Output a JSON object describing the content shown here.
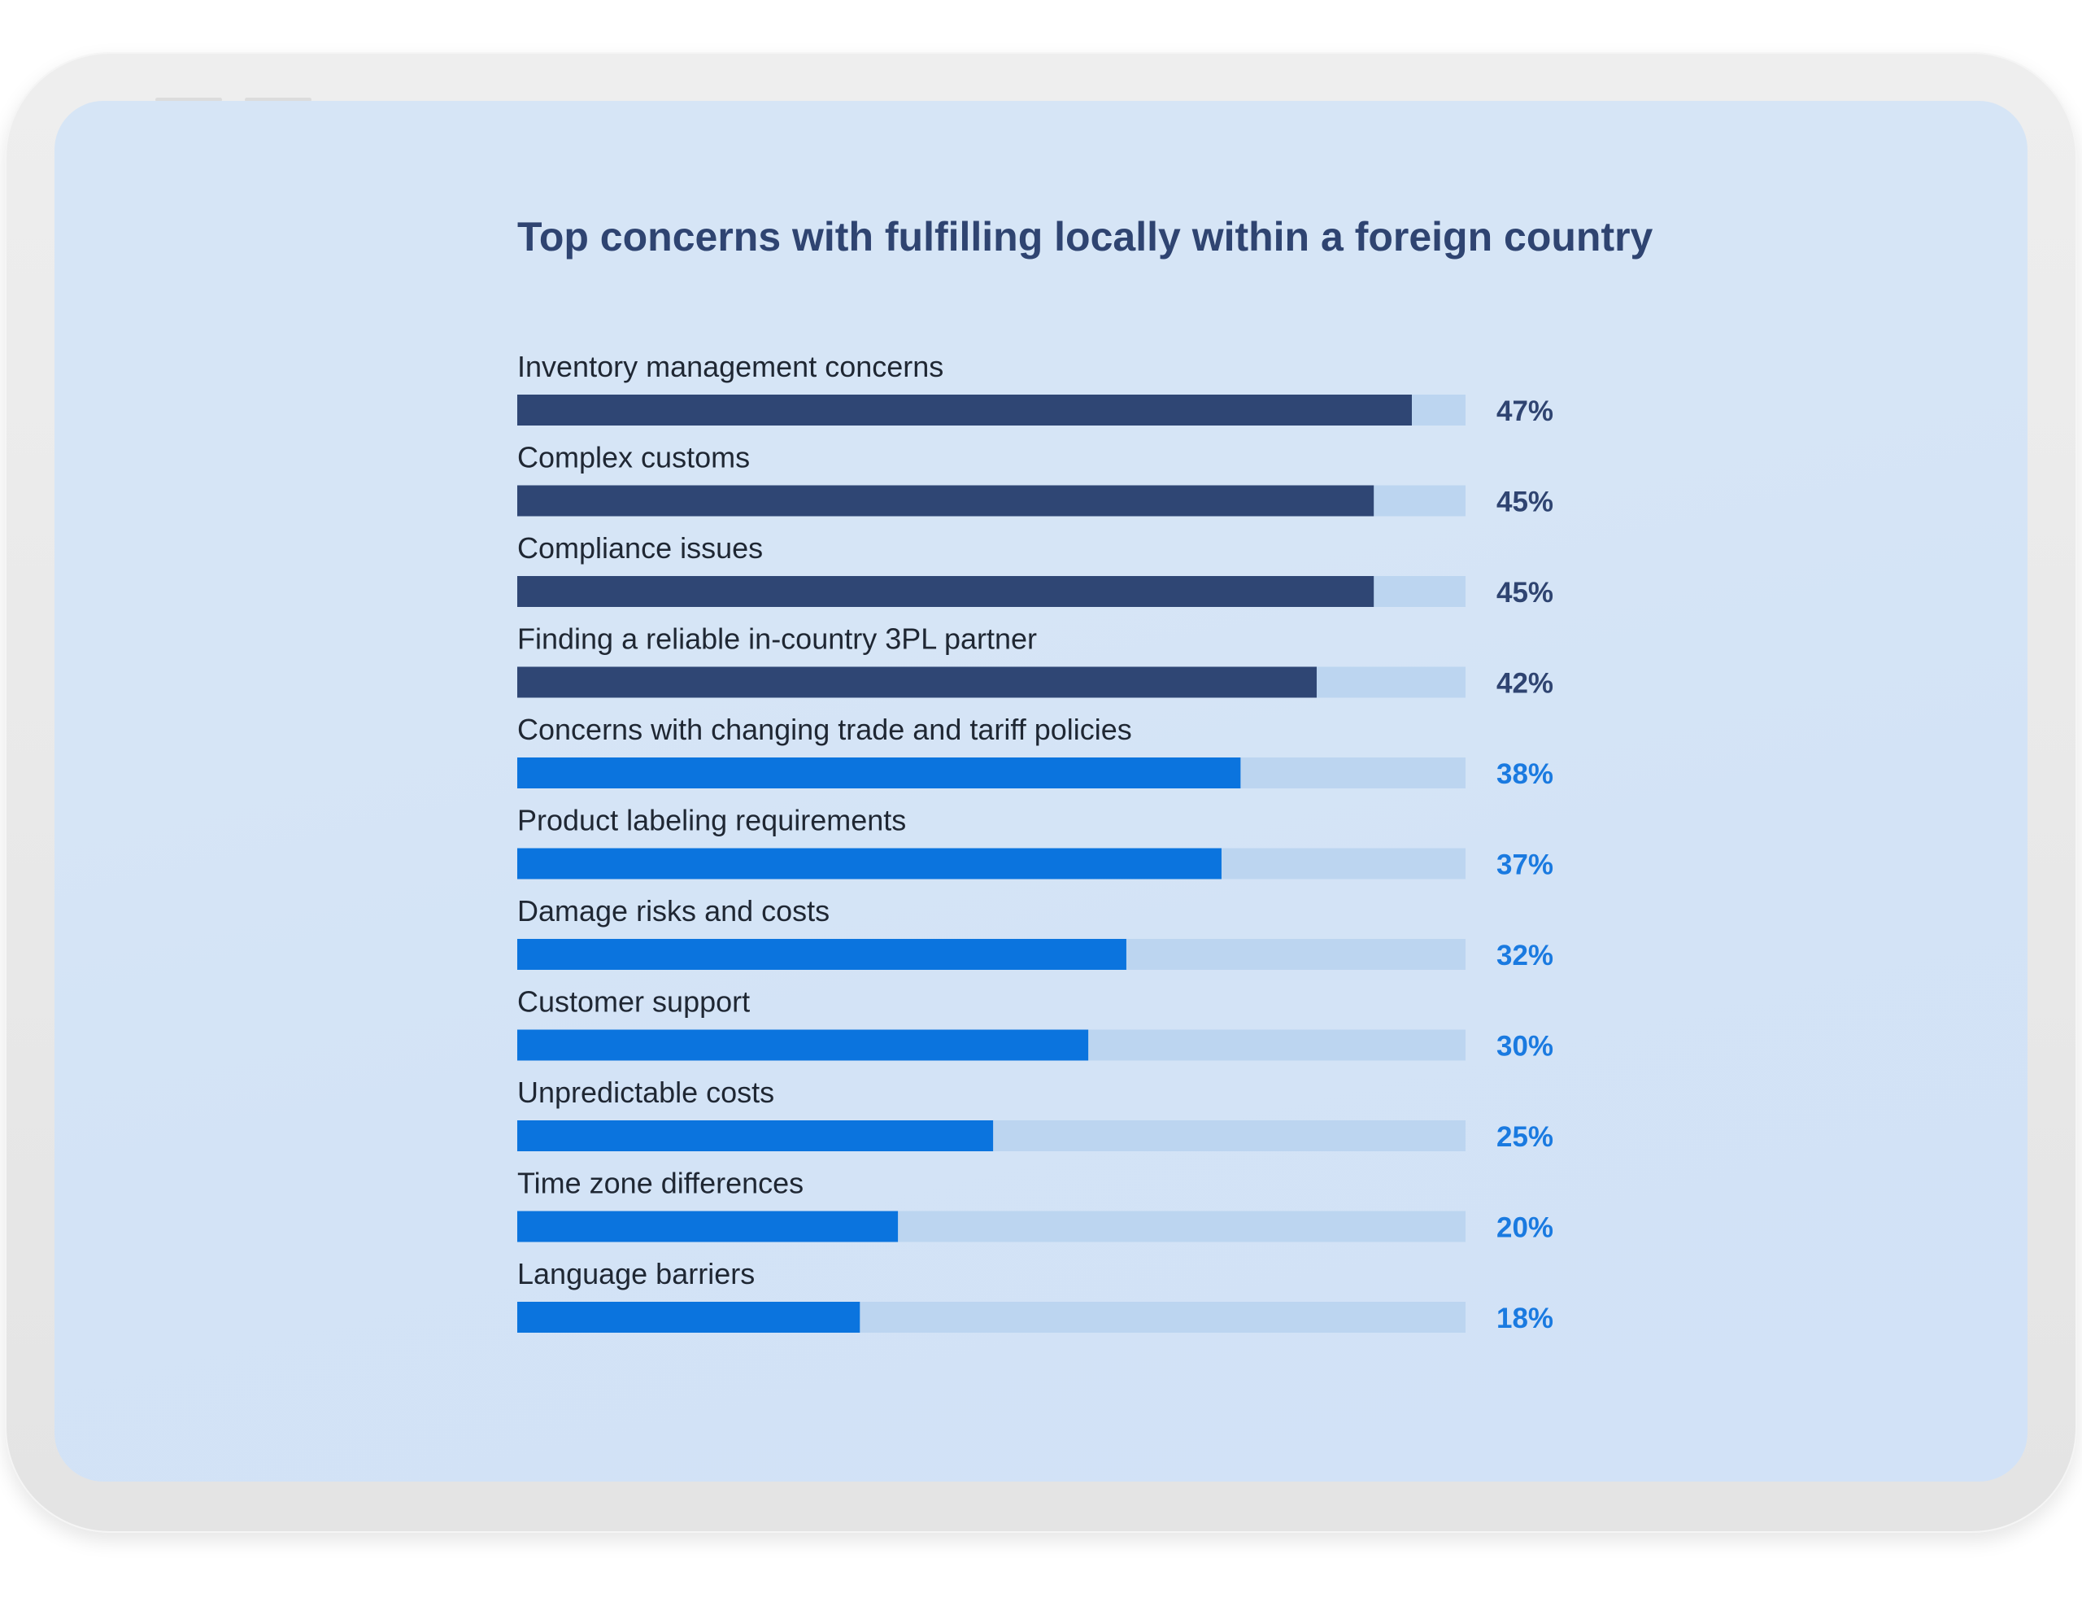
{
  "chart_data": {
    "type": "bar",
    "orientation": "horizontal",
    "title": "Top concerns with fulfilling locally within a foreign country",
    "xlabel": "",
    "ylabel": "",
    "xlim": [
      0,
      50
    ],
    "grid": false,
    "value_suffix": "%",
    "categories": [
      "Inventory management concerns",
      "Complex customs",
      "Compliance issues",
      "Finding a reliable in-country 3PL partner",
      "Concerns with changing trade and tariff policies",
      "Product labeling requirements",
      "Damage risks and costs",
      "Customer support",
      "Unpredictable costs",
      "Time zone differences",
      "Language barriers"
    ],
    "values": [
      47,
      45,
      45,
      42,
      38,
      37,
      32,
      30,
      25,
      20,
      18
    ],
    "value_labels": [
      "47%",
      "45%",
      "45%",
      "42%",
      "38%",
      "37%",
      "32%",
      "30%",
      "25%",
      "20%",
      "18%"
    ],
    "colors": {
      "top_bar": "#2f4674",
      "other_bar": "#0b74de",
      "track": "#bcd5f0",
      "top_value_text": "#2f4471",
      "other_value_text": "#1a7ae0",
      "category_text": "#1f2733"
    },
    "highlighted_count": 4
  }
}
